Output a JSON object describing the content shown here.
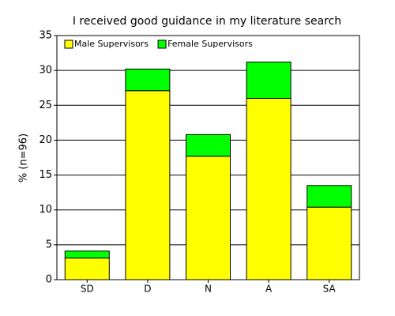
{
  "chart_data": {
    "type": "bar",
    "stacked": true,
    "title": "I received good guidance in my literature search",
    "y_label": "% (n=96)",
    "categories": [
      "SD",
      "D",
      "N",
      "A",
      "SA"
    ],
    "series": [
      {
        "name": "Male Supervisors",
        "color": "#ffff00",
        "values": [
          3.1,
          27.1,
          17.7,
          26.0,
          10.4
        ]
      },
      {
        "name": "Female Supervisors",
        "color": "#00ff00",
        "values": [
          1.0,
          3.1,
          3.1,
          5.2,
          3.1
        ]
      }
    ],
    "ylim": [
      0,
      35
    ],
    "yticks": [
      0,
      5,
      10,
      15,
      20,
      25,
      30,
      35
    ],
    "grid": true,
    "legend": "upper-left"
  }
}
